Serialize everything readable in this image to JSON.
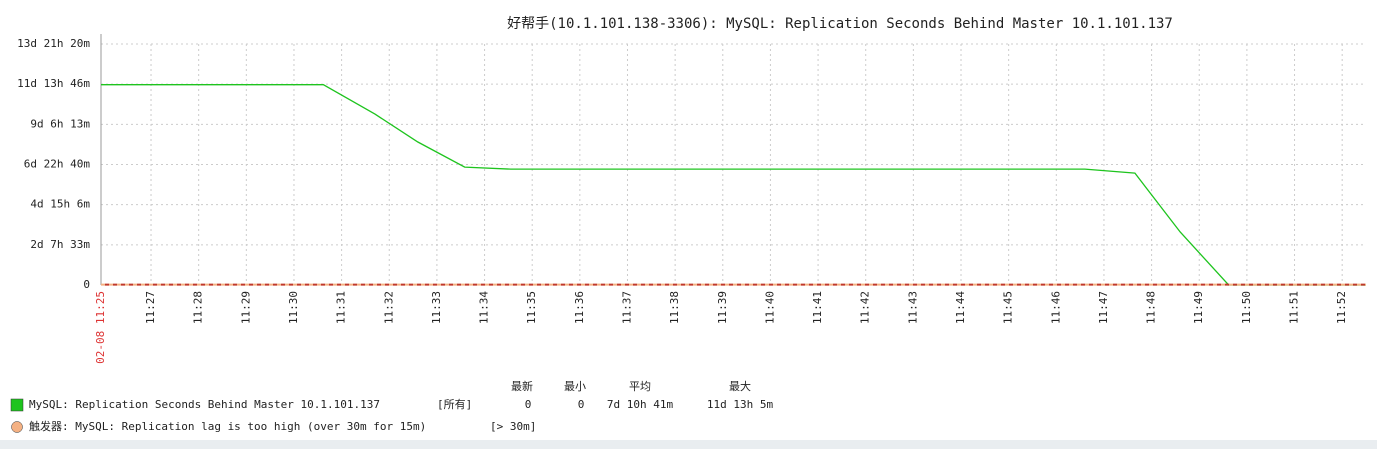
{
  "chart_data": {
    "type": "line",
    "title": "好帮手(10.1.101.138-3306): MySQL: Replication Seconds Behind Master 10.1.101.137",
    "x": [
      "11:25:57",
      "11:30:37",
      "11:31:42",
      "11:32:36",
      "11:33:35",
      "11:34:33",
      "11:46:36",
      "11:47:39",
      "11:48:36",
      "11:49:37",
      "11:52:30"
    ],
    "xlim": [
      "11:25:57",
      "11:52:30"
    ],
    "xticks": [
      {
        "value": "11:25:57",
        "label": "02-08 11:25"
      },
      "11:27",
      "11:28",
      "11:29",
      "11:30",
      "11:31",
      "11:32",
      "11:33",
      "11:34",
      "11:35",
      "11:36",
      "11:37",
      "11:38",
      "11:39",
      "11:40",
      "11:41",
      "11:42",
      "11:43",
      "11:44",
      "11:45",
      "11:46",
      "11:47",
      "11:48",
      "11:49",
      "11:50",
      "11:51",
      "11:52"
    ],
    "ylim": [
      0,
      1200000
    ],
    "yticks": [
      {
        "value": 0,
        "label": "0"
      },
      {
        "value": 200000,
        "label": "2d 7h 33m"
      },
      {
        "value": 400000,
        "label": "4d 15h 6m"
      },
      {
        "value": 600000,
        "label": "6d 22h 40m"
      },
      {
        "value": 800000,
        "label": "9d 6h 13m"
      },
      {
        "value": 1000000,
        "label": "11d 13h 46m"
      },
      {
        "value": 1200000,
        "label": "13d 21h 20m"
      }
    ],
    "grid": true,
    "legend_headers": [
      "最新",
      "最小",
      "平均",
      "最大"
    ],
    "series": [
      {
        "name": "MySQL: Replication Seconds Behind Master 10.1.101.137",
        "scope": "[所有]",
        "color": "#1ec41e",
        "values": [
          997500,
          997500,
          851000,
          712000,
          587000,
          577000,
          577000,
          557000,
          264000,
          0,
          0
        ],
        "stats": [
          "0",
          "0",
          "7d 10h 41m",
          "11d 13h 5m"
        ]
      }
    ],
    "trigger": {
      "name": "触发器: MySQL: Replication lag is too high (over 30m for 15m)",
      "condition": "[> 30m]",
      "value": 1800,
      "color": "#f4b183"
    }
  }
}
